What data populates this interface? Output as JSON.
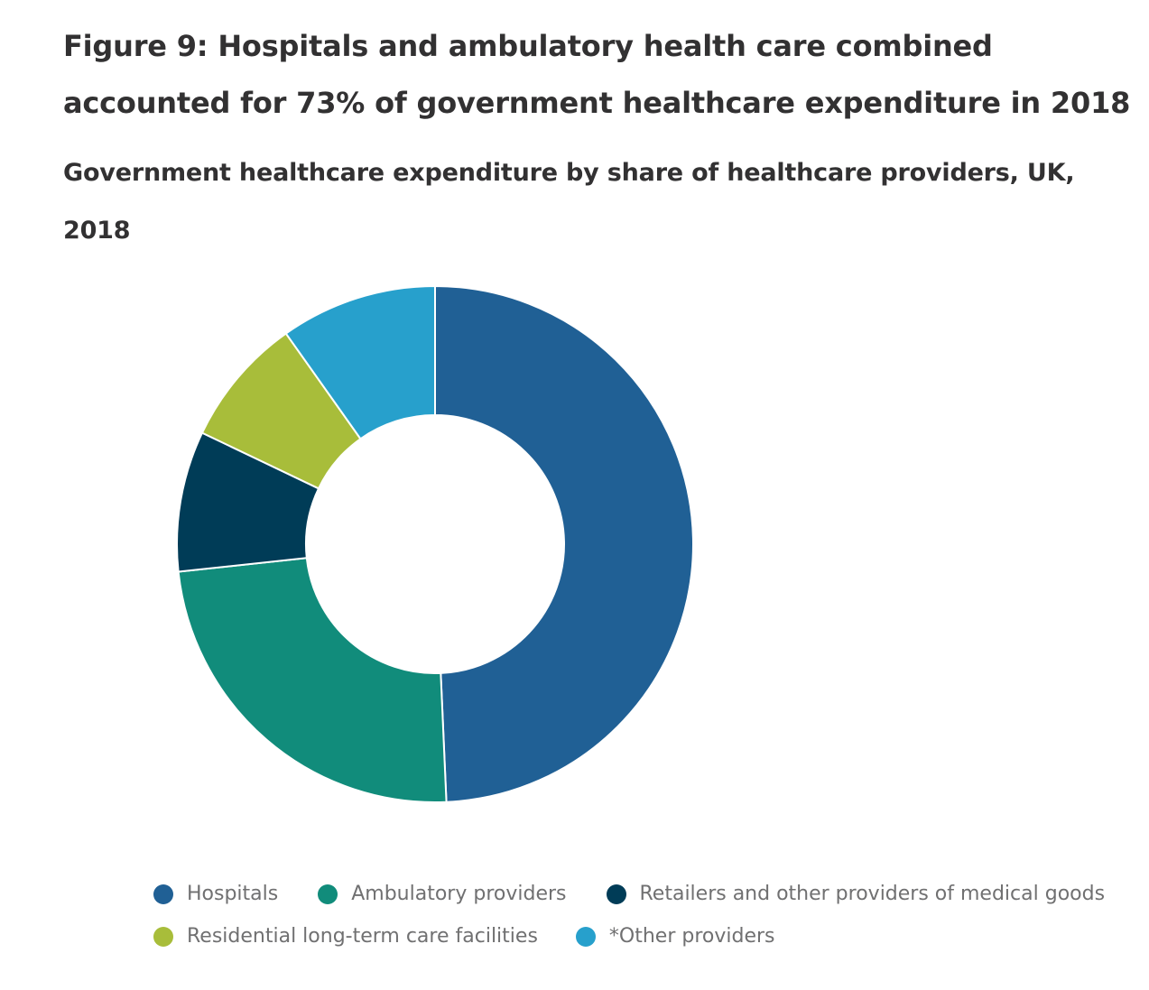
{
  "title": "Figure 9: Hospitals and ambulatory health care combined accounted for 73% of government healthcare expenditure in 2018",
  "subtitle": "Government healthcare expenditure by share of healthcare providers, UK, 2018",
  "chart_data": {
    "type": "pie",
    "variant": "donut",
    "title": "Figure 9: Hospitals and ambulatory health care combined accounted for 73% of government healthcare expenditure in 2018",
    "subtitle": "Government healthcare expenditure by share of healthcare providers, UK, 2018",
    "unit": "%",
    "legend_position": "bottom",
    "slices": [
      {
        "label": "Hospitals",
        "value": 49.3,
        "color": "#206095"
      },
      {
        "label": "Ambulatory providers",
        "value": 24.0,
        "color": "#118c7b"
      },
      {
        "label": "Retailers and other providers of medical goods",
        "value": 8.8,
        "color": "#003c57"
      },
      {
        "label": "Residential long-term care facilities",
        "value": 8.1,
        "color": "#a8bd3a"
      },
      {
        "label": "*Other providers",
        "value": 9.8,
        "color": "#27a0cc"
      }
    ]
  }
}
